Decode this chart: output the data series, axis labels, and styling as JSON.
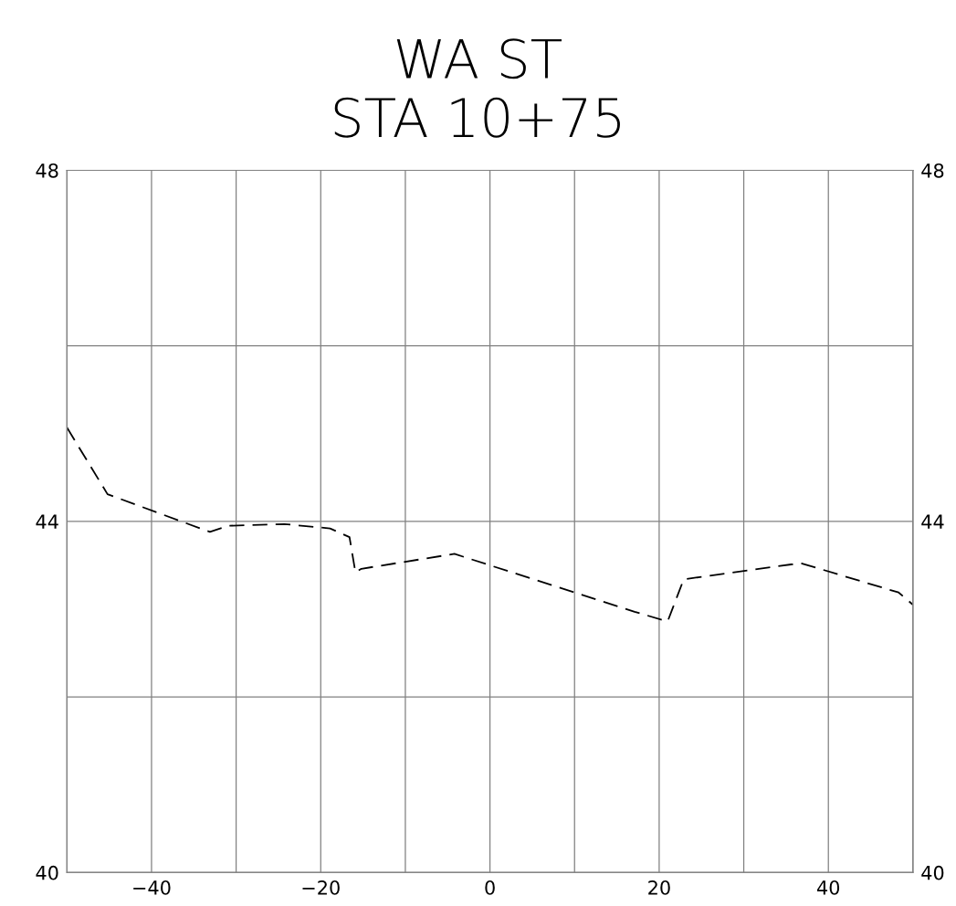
{
  "chart_data": {
    "type": "line",
    "title": "WA ST",
    "subtitle": "STA 10+75",
    "x": [
      -50,
      -45.2,
      -33.1,
      -30.9,
      -24.3,
      -18.9,
      -16.6,
      -15.9,
      -15.2,
      -4.2,
      17.1,
      21.0,
      22.9,
      35.6,
      36.9,
      48.3,
      50
    ],
    "series": [
      {
        "color": "#000000",
        "values": [
          45.07,
          44.31,
          43.88,
          43.95,
          43.97,
          43.92,
          43.82,
          43.42,
          43.46,
          43.63,
          42.97,
          42.86,
          43.34,
          43.51,
          43.52,
          43.19,
          43.05
        ]
      }
    ],
    "xlim": [
      -50,
      50
    ],
    "xticks": [
      {
        "value": -50,
        "label": null
      },
      -40,
      {
        "value": -30,
        "label": null
      },
      -20,
      {
        "value": -10,
        "label": null
      },
      0,
      {
        "value": 10,
        "label": null
      },
      20,
      {
        "value": 30,
        "label": null
      },
      40,
      {
        "value": 50,
        "label": null
      }
    ],
    "ylim": [
      40,
      48
    ],
    "yticks": [
      40,
      {
        "value": 42,
        "label": null
      },
      44,
      {
        "value": 46,
        "label": null
      },
      48
    ],
    "y2lim": [
      40,
      48
    ],
    "y2ticks": [
      40,
      44,
      48
    ],
    "grid": true,
    "line_style": "dashed",
    "marker": "none",
    "legend": false
  }
}
